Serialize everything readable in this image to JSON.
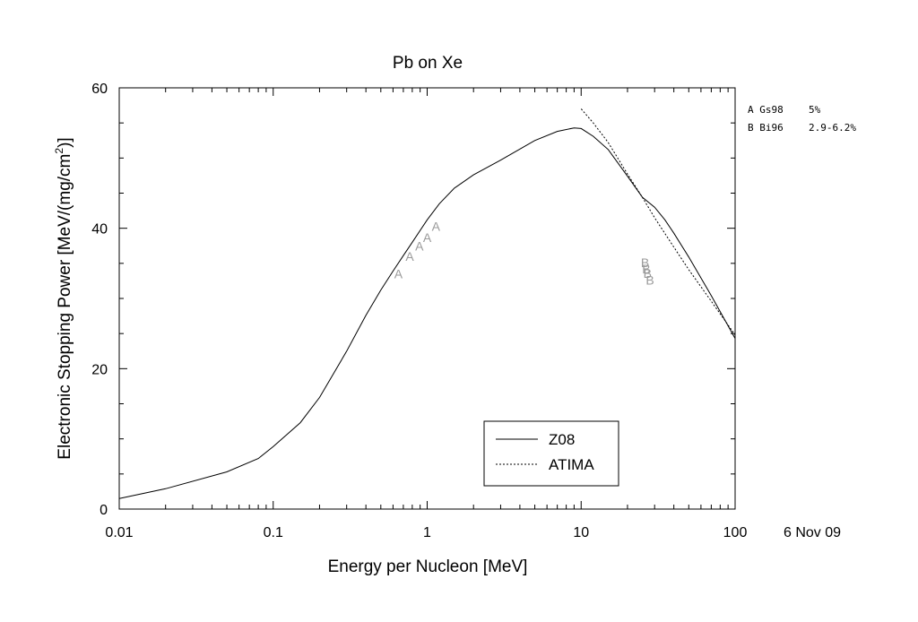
{
  "chart_data": {
    "type": "line",
    "title": "Pb on Xe",
    "xlabel": "Energy per Nucleon [MeV]",
    "ylabel_main": "Electronic Stopping Power [MeV/(mg/cm",
    "ylabel_sup": "2",
    "ylabel_tail": ")]",
    "x_scale": "log",
    "xlim": [
      0.01,
      100
    ],
    "ylim": [
      0,
      60
    ],
    "x_ticks": [
      0.01,
      0.1,
      1,
      10,
      100
    ],
    "x_tick_labels": [
      "0.01",
      "0.1",
      "1",
      "10",
      "100"
    ],
    "y_ticks": [
      0,
      20,
      40,
      60
    ],
    "y_tick_labels": [
      "0",
      "20",
      "40",
      "60"
    ],
    "grid": false,
    "legend_position": "bottom-center",
    "series": [
      {
        "name": "Z08",
        "style": "solid",
        "x": [
          0.01,
          0.02,
          0.05,
          0.08,
          0.1,
          0.15,
          0.2,
          0.3,
          0.4,
          0.5,
          0.6,
          0.7,
          0.8,
          1.0,
          1.2,
          1.5,
          2,
          3,
          5,
          7,
          9,
          10,
          12,
          15,
          20,
          25,
          30,
          35,
          40,
          50,
          70,
          100
        ],
        "y": [
          1.5,
          2.9,
          5.3,
          7.2,
          8.9,
          12.3,
          15.9,
          22.5,
          27.6,
          31.2,
          33.9,
          36.1,
          38.0,
          41.2,
          43.5,
          45.7,
          47.6,
          49.7,
          52.5,
          53.8,
          54.3,
          54.2,
          53.1,
          51.2,
          47.4,
          44.4,
          43.0,
          41.2,
          39.3,
          35.9,
          30.4,
          24.3
        ]
      },
      {
        "name": "ATIMA",
        "style": "dashed",
        "x": [
          10,
          12,
          15,
          20,
          25,
          30,
          40,
          50,
          70,
          100
        ],
        "y": [
          57.0,
          55.0,
          52.2,
          47.7,
          44.4,
          41.5,
          37.3,
          34.1,
          29.6,
          24.8
        ]
      }
    ],
    "points": [
      {
        "label": "A",
        "x": 0.65,
        "y": 33.5
      },
      {
        "label": "A",
        "x": 0.77,
        "y": 36.0
      },
      {
        "label": "A",
        "x": 0.89,
        "y": 37.5
      },
      {
        "label": "A",
        "x": 1.0,
        "y": 38.7
      },
      {
        "label": "A",
        "x": 1.14,
        "y": 40.3
      },
      {
        "label": "B",
        "x": 26,
        "y": 35.1
      },
      {
        "label": "B",
        "x": 26.5,
        "y": 34.2
      },
      {
        "label": "B",
        "x": 27,
        "y": 33.6
      },
      {
        "label": "B",
        "x": 28,
        "y": 32.6
      }
    ],
    "references": [
      {
        "key": "A",
        "name": "Gs98",
        "uncertainty": "5%"
      },
      {
        "key": "B",
        "name": "Bi96",
        "uncertainty": "2.9-6.2%"
      }
    ]
  },
  "date_stamp": "6 Nov 09"
}
